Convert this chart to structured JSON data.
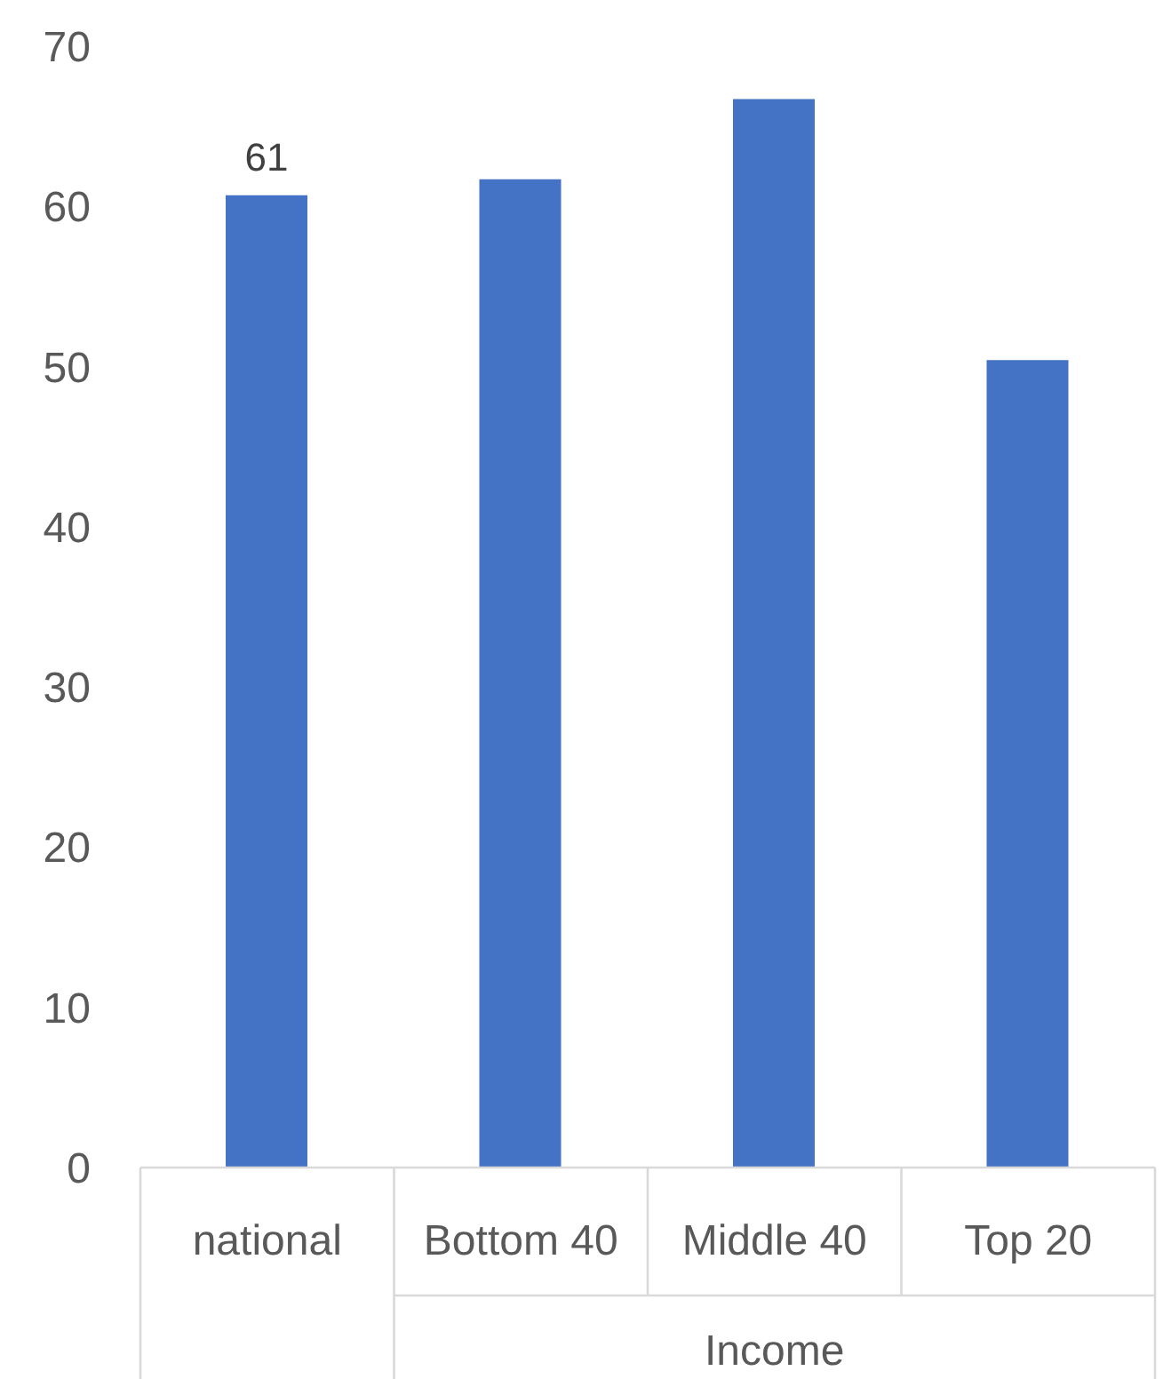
{
  "chart_data": {
    "type": "bar",
    "categories": [
      "national",
      "Bottom 40",
      "Middle 40",
      "Top 20"
    ],
    "values": [
      60.7,
      61.7,
      66.7,
      50.4
    ],
    "color": "#4472c4",
    "value_labels": [
      "61",
      null,
      null,
      null
    ],
    "ylim": [
      0,
      70
    ],
    "yticks": [
      0,
      10,
      20,
      30,
      40,
      50,
      60,
      70
    ],
    "annotations": [
      "Income"
    ]
  }
}
